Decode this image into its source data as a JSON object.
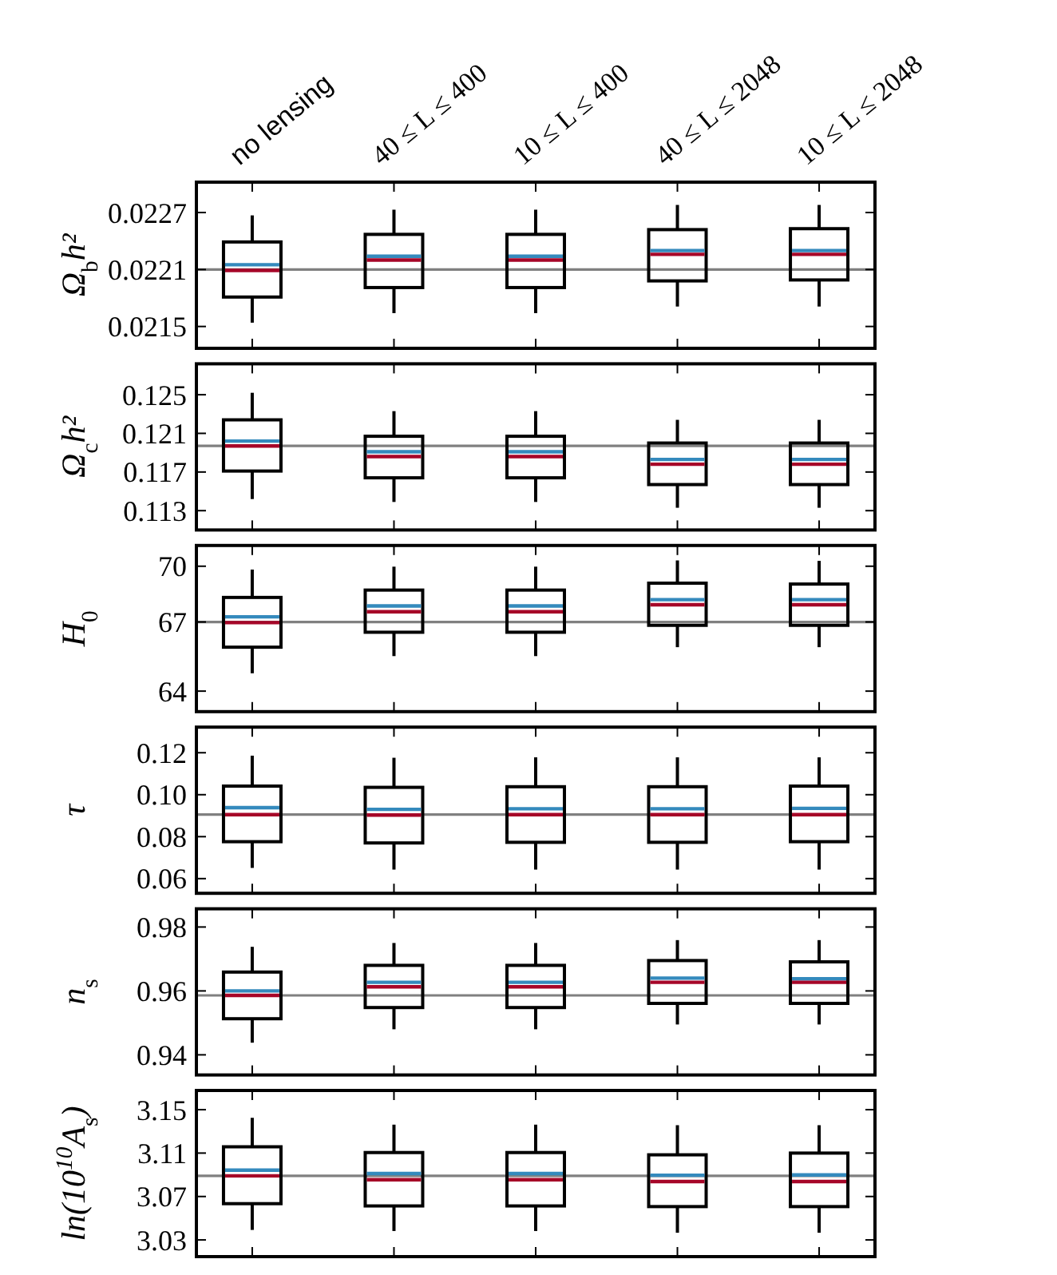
{
  "chart_data": [
    {
      "type": "box",
      "ylabel": "Ω$_{b}$h²",
      "categories": [
        "no lensing",
        "40 ≤ L ≤ 400",
        "10 ≤ L ≤ 400",
        "40 ≤ L ≤ 2048",
        "10 ≤ L ≤ 2048"
      ],
      "ylim": [
        0.02127,
        0.02302
      ],
      "yticks": [
        0.0215,
        0.0221,
        0.0227
      ],
      "ref_lines": [
        {
          "axis": "y",
          "value": 0.0221,
          "color": "#808080"
        }
      ],
      "color": "#000000",
      "boxes": [
        {
          "low": 0.02154,
          "q1": 0.02181,
          "median": 0.02209,
          "q3": 0.02239,
          "high": 0.02267,
          "mean": 0.02215
        },
        {
          "low": 0.02164,
          "q1": 0.02191,
          "median": 0.0222,
          "q3": 0.02247,
          "high": 0.02273,
          "mean": 0.02224
        },
        {
          "low": 0.02164,
          "q1": 0.02191,
          "median": 0.0222,
          "q3": 0.02247,
          "high": 0.02273,
          "mean": 0.02224
        },
        {
          "low": 0.02171,
          "q1": 0.02198,
          "median": 0.02226,
          "q3": 0.02252,
          "high": 0.02278,
          "mean": 0.0223
        },
        {
          "low": 0.02171,
          "q1": 0.02199,
          "median": 0.02226,
          "q3": 0.02253,
          "high": 0.02278,
          "mean": 0.0223
        }
      ]
    },
    {
      "type": "box",
      "ylabel": "Ω$_{c}$h²",
      "categories": [
        null,
        null,
        null,
        null,
        null
      ],
      "tick_labels": "y",
      "ylim": [
        0.111,
        0.1282
      ],
      "yticks": [
        0.113,
        0.117,
        0.121,
        0.125
      ],
      "ref_lines": [
        {
          "axis": "y",
          "value": 0.1197,
          "color": "#808080"
        }
      ],
      "color": "#000000",
      "boxes": [
        {
          "low": 0.1142,
          "q1": 0.1171,
          "median": 0.1197,
          "q3": 0.1224,
          "high": 0.1252,
          "mean": 0.1202
        },
        {
          "low": 0.1139,
          "q1": 0.1164,
          "median": 0.1186,
          "q3": 0.1207,
          "high": 0.1233,
          "mean": 0.1191
        },
        {
          "low": 0.1139,
          "q1": 0.1164,
          "median": 0.1186,
          "q3": 0.1207,
          "high": 0.1233,
          "mean": 0.1191
        },
        {
          "low": 0.1133,
          "q1": 0.1157,
          "median": 0.1178,
          "q3": 0.12,
          "high": 0.1224,
          "mean": 0.1183
        },
        {
          "low": 0.1133,
          "q1": 0.1157,
          "median": 0.1178,
          "q3": 0.12,
          "high": 0.1224,
          "mean": 0.1183
        }
      ]
    },
    {
      "type": "box",
      "ylabel": "H$_{0}$",
      "categories": [
        null,
        null,
        null,
        null,
        null
      ],
      "tick_labels": "y",
      "ylim": [
        63.28,
        70.73
      ],
      "yticks": [
        {
          "value": 64.2,
          "label": "64"
        },
        {
          "value": 67.3,
          "label": "67"
        },
        {
          "value": 69.8,
          "label": "70"
        }
      ],
      "ref_lines": [
        {
          "axis": "y",
          "value": 67.3,
          "color": "#808080"
        }
      ],
      "color": "#000000",
      "boxes": [
        {
          "low": 65.0,
          "q1": 66.17,
          "median": 67.27,
          "q3": 68.4,
          "high": 69.65,
          "mean": 67.53
        },
        {
          "low": 65.77,
          "q1": 66.84,
          "median": 67.76,
          "q3": 68.73,
          "high": 69.78,
          "mean": 68.02
        },
        {
          "low": 65.77,
          "q1": 66.84,
          "median": 67.76,
          "q3": 68.73,
          "high": 69.78,
          "mean": 68.02
        },
        {
          "low": 66.17,
          "q1": 67.15,
          "median": 68.07,
          "q3": 69.04,
          "high": 70.06,
          "mean": 68.3
        },
        {
          "low": 66.17,
          "q1": 67.15,
          "median": 68.07,
          "q3": 69.0,
          "high": 70.04,
          "mean": 68.3
        }
      ]
    },
    {
      "type": "box",
      "ylabel": "τ",
      "categories": [
        null,
        null,
        null,
        null,
        null
      ],
      "tick_labels": "y",
      "ylim": [
        0.053,
        0.1322
      ],
      "yticks": [
        0.06,
        0.08,
        {
          "value": 0.1,
          "label": "0.10"
        },
        0.12
      ],
      "ref_lines": [
        {
          "axis": "y",
          "value": 0.0905,
          "color": "#808080"
        }
      ],
      "color": "#000000",
      "boxes": [
        {
          "low": 0.0651,
          "q1": 0.0776,
          "median": 0.0905,
          "q3": 0.1041,
          "high": 0.1186,
          "mean": 0.0938
        },
        {
          "low": 0.0643,
          "q1": 0.077,
          "median": 0.0903,
          "q3": 0.1035,
          "high": 0.1176,
          "mean": 0.093
        },
        {
          "low": 0.0643,
          "q1": 0.0773,
          "median": 0.0905,
          "q3": 0.1038,
          "high": 0.1178,
          "mean": 0.0933
        },
        {
          "low": 0.0643,
          "q1": 0.0773,
          "median": 0.0905,
          "q3": 0.1038,
          "high": 0.1178,
          "mean": 0.0933
        },
        {
          "low": 0.0643,
          "q1": 0.0776,
          "median": 0.0905,
          "q3": 0.1041,
          "high": 0.1178,
          "mean": 0.0935
        }
      ]
    },
    {
      "type": "box",
      "ylabel": "n$_{s}$",
      "categories": [
        null,
        null,
        null,
        null,
        null
      ],
      "tick_labels": "y",
      "ylim": [
        0.9337,
        0.9857
      ],
      "yticks": [
        0.94,
        0.96,
        0.98
      ],
      "ref_lines": [
        {
          "axis": "y",
          "value": 0.9586,
          "color": "#808080"
        }
      ],
      "color": "#000000",
      "boxes": [
        {
          "low": 0.9438,
          "q1": 0.9513,
          "median": 0.9586,
          "q3": 0.9659,
          "high": 0.9738,
          "mean": 0.96
        },
        {
          "low": 0.948,
          "q1": 0.9548,
          "median": 0.9613,
          "q3": 0.968,
          "high": 0.975,
          "mean": 0.9627
        },
        {
          "low": 0.948,
          "q1": 0.9548,
          "median": 0.9613,
          "q3": 0.968,
          "high": 0.975,
          "mean": 0.9627
        },
        {
          "low": 0.9495,
          "q1": 0.9561,
          "median": 0.9627,
          "q3": 0.9695,
          "high": 0.9759,
          "mean": 0.964
        },
        {
          "low": 0.9495,
          "q1": 0.9561,
          "median": 0.9627,
          "q3": 0.9691,
          "high": 0.9759,
          "mean": 0.9638
        }
      ]
    },
    {
      "type": "box",
      "ylabel": "ln(10$^{10}$A$_{s}$)",
      "categories": [
        null,
        null,
        null,
        null,
        null
      ],
      "tick_labels": "y",
      "ylim": [
        3.0146,
        3.1677
      ],
      "yticks": [
        3.03,
        3.07,
        3.11,
        3.15
      ],
      "ref_lines": [
        {
          "axis": "y",
          "value": 3.089,
          "color": "#808080"
        }
      ],
      "color": "#000000",
      "boxes": [
        {
          "low": 3.0392,
          "q1": 3.0634,
          "median": 3.089,
          "q3": 3.1158,
          "high": 3.1425,
          "mean": 3.0943
        },
        {
          "low": 3.0382,
          "q1": 3.0613,
          "median": 3.0854,
          "q3": 3.1105,
          "high": 3.1362,
          "mean": 3.0911
        },
        {
          "low": 3.0382,
          "q1": 3.0613,
          "median": 3.0854,
          "q3": 3.1105,
          "high": 3.1362,
          "mean": 3.0911
        },
        {
          "low": 3.0366,
          "q1": 3.0607,
          "median": 3.0838,
          "q3": 3.1084,
          "high": 3.1357,
          "mean": 3.0896
        },
        {
          "low": 3.0366,
          "q1": 3.0607,
          "median": 3.0838,
          "q3": 3.11,
          "high": 3.1357,
          "mean": 3.0899
        }
      ]
    }
  ]
}
